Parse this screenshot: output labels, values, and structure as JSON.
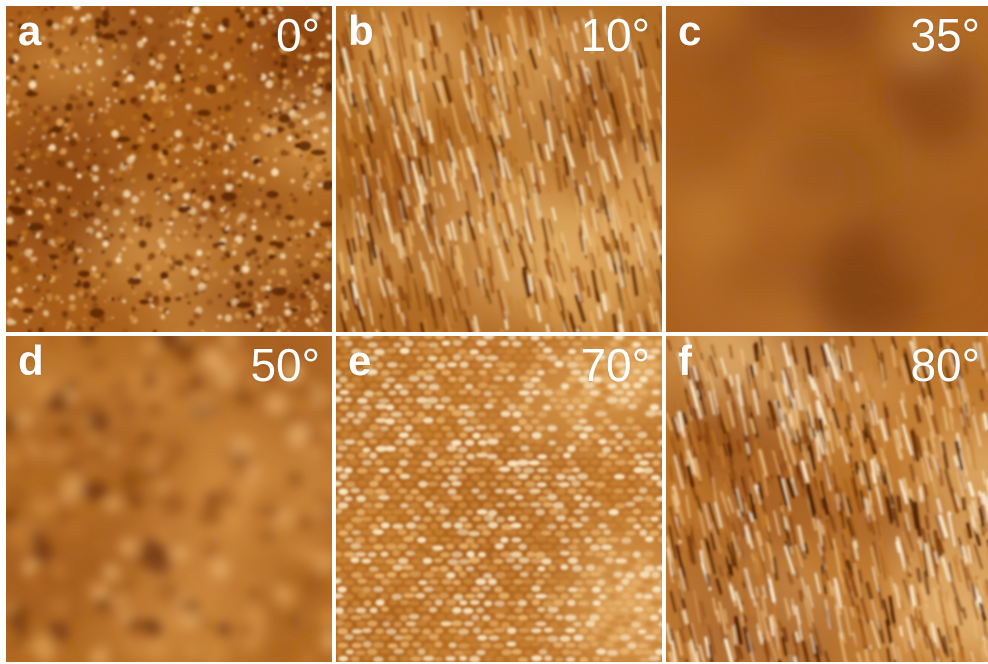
{
  "panels": [
    {
      "letter": "a",
      "angle": "0°",
      "palette": [
        "#5a2404",
        "#8c4612",
        "#b8701f",
        "#dda053",
        "#f6dbb0"
      ],
      "base": "#a85e1a",
      "texture": "grainy"
    },
    {
      "letter": "b",
      "angle": "10°",
      "palette": [
        "#5f2a06",
        "#9a5014",
        "#c47e2c",
        "#e6b26a",
        "#f8e6c4"
      ],
      "base": "#b06a22",
      "texture": "streaks"
    },
    {
      "letter": "c",
      "angle": "35°",
      "palette": [
        "#7a3a0c",
        "#9a531a",
        "#ad6424",
        "#c0792e",
        "#e0a860"
      ],
      "base": "#a65c1c",
      "texture": "smooth"
    },
    {
      "letter": "d",
      "angle": "50°",
      "palette": [
        "#6a300a",
        "#a0581c",
        "#c07830",
        "#d89448",
        "#e8b06a"
      ],
      "base": "#b46c24",
      "texture": "blotchy"
    },
    {
      "letter": "e",
      "angle": "70°",
      "palette": [
        "#7a3a0c",
        "#a85e1c",
        "#cc8838",
        "#e8b26a",
        "#fbe6c0"
      ],
      "base": "#b86e26",
      "texture": "cells"
    },
    {
      "letter": "f",
      "angle": "80°",
      "palette": [
        "#4a1c02",
        "#8e4610",
        "#c27a2a",
        "#e8b878",
        "#fdf0d8"
      ],
      "base": "#c07a30",
      "texture": "streaks2"
    }
  ]
}
